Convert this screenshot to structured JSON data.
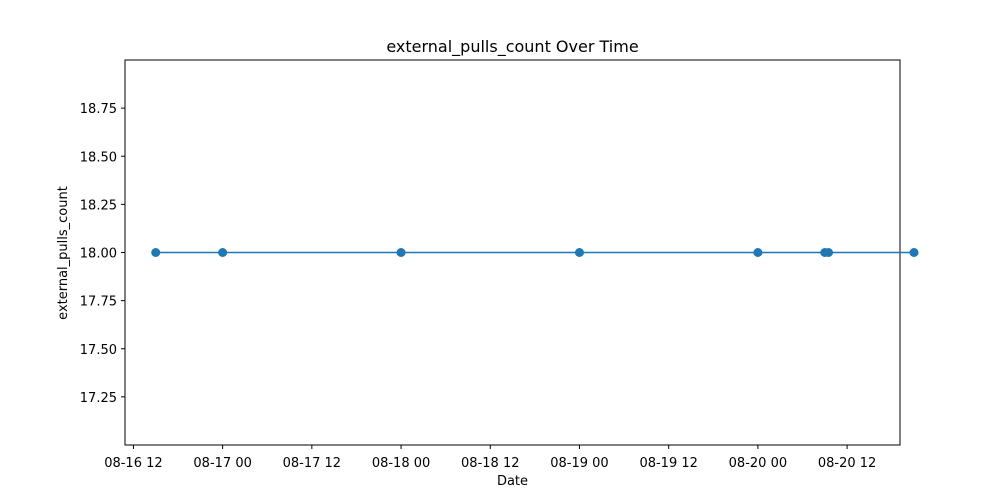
{
  "chart_data": {
    "type": "line",
    "title": "external_pulls_count Over Time",
    "xlabel": "Date",
    "ylabel": "external_pulls_count",
    "x_type": "datetime",
    "xlim": [
      "2016-08-16T10:52",
      "2016-08-20T19:07"
    ],
    "ylim": [
      17.0,
      19.0
    ],
    "x_ticks": [
      {
        "value": "2016-08-16T12:00",
        "label": "08-16 12"
      },
      {
        "value": "2016-08-17T00:00",
        "label": "08-17 00"
      },
      {
        "value": "2016-08-17T12:00",
        "label": "08-17 12"
      },
      {
        "value": "2016-08-18T00:00",
        "label": "08-18 00"
      },
      {
        "value": "2016-08-18T12:00",
        "label": "08-18 12"
      },
      {
        "value": "2016-08-19T00:00",
        "label": "08-19 00"
      },
      {
        "value": "2016-08-19T12:00",
        "label": "08-19 12"
      },
      {
        "value": "2016-08-20T00:00",
        "label": "08-20 00"
      },
      {
        "value": "2016-08-20T12:00",
        "label": "08-20 12"
      }
    ],
    "y_ticks": [
      {
        "value": 17.25,
        "label": "17.25"
      },
      {
        "value": 17.5,
        "label": "17.50"
      },
      {
        "value": 17.75,
        "label": "17.75"
      },
      {
        "value": 18.0,
        "label": "18.00"
      },
      {
        "value": 18.25,
        "label": "18.25"
      },
      {
        "value": 18.5,
        "label": "18.50"
      },
      {
        "value": 18.75,
        "label": "18.75"
      }
    ],
    "grid": false,
    "legend": "none",
    "series": [
      {
        "color": "#1f77b4",
        "marker": "circle",
        "points": [
          {
            "x": "2016-08-16T15:00",
            "y": 18
          },
          {
            "x": "2016-08-17T00:00",
            "y": 18
          },
          {
            "x": "2016-08-18T00:00",
            "y": 18
          },
          {
            "x": "2016-08-19T00:00",
            "y": 18
          },
          {
            "x": "2016-08-20T00:00",
            "y": 18
          },
          {
            "x": "2016-08-20T09:00",
            "y": 18
          },
          {
            "x": "2016-08-20T09:30",
            "y": 18
          },
          {
            "x": "2016-08-20T21:00",
            "y": 18
          }
        ]
      }
    ]
  }
}
